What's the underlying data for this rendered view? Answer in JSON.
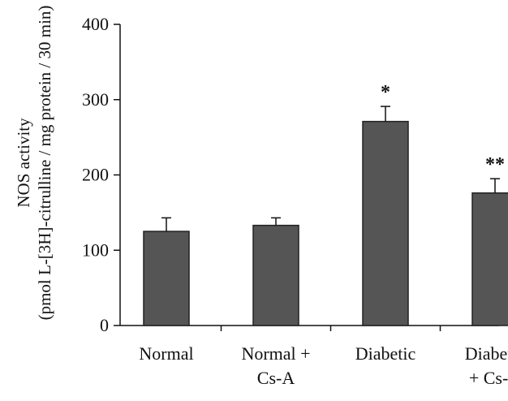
{
  "chart_data": {
    "type": "bar",
    "categories": [
      [
        "Normal"
      ],
      [
        "Normal +",
        "Cs-A"
      ],
      [
        "Diabetic"
      ],
      [
        "Diabetic",
        "+ Cs-A"
      ]
    ],
    "values": [
      125,
      133,
      271,
      176
    ],
    "errors": [
      18,
      10,
      20,
      19
    ],
    "annotations": [
      "",
      "",
      "*",
      "**"
    ],
    "title": "",
    "ylabel": [
      "NOS activity",
      "(pmol L-[3H]-citrulline / mg protein / 30 min)"
    ],
    "xlabel": "",
    "ylim": [
      0,
      400
    ],
    "yticks": [
      0,
      100,
      200,
      300,
      400
    ],
    "grid": false,
    "colors": {
      "bar": "#555555",
      "bar_edge": "#222222",
      "axis": "#111111"
    }
  }
}
